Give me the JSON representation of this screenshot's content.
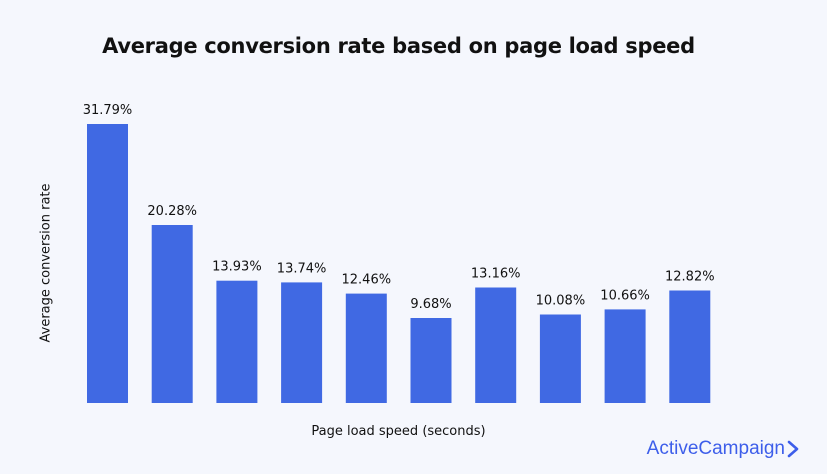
{
  "chart_data": {
    "type": "bar",
    "title": "Average conversion rate based on page load speed",
    "xlabel": "Page load speed (seconds)",
    "ylabel": "Average conversion rate",
    "categories": [
      "",
      "",
      "",
      "",
      "",
      "",
      "",
      "",
      "",
      ""
    ],
    "values": [
      31.79,
      20.28,
      13.93,
      13.74,
      12.46,
      9.68,
      13.16,
      10.08,
      10.66,
      12.82
    ],
    "value_labels": [
      "31.79%",
      "20.28%",
      "13.93%",
      "13.74%",
      "12.46%",
      "9.68%",
      "13.16%",
      "10.08%",
      "10.66%",
      "12.82%"
    ],
    "ylim": [
      0,
      31.79
    ],
    "grid": false,
    "legend": "none",
    "bar_color": "#4069e3"
  },
  "brand": {
    "name": "ActiveCampaign",
    "color": "#3d5eea",
    "icon": "chevron-right-icon"
  }
}
